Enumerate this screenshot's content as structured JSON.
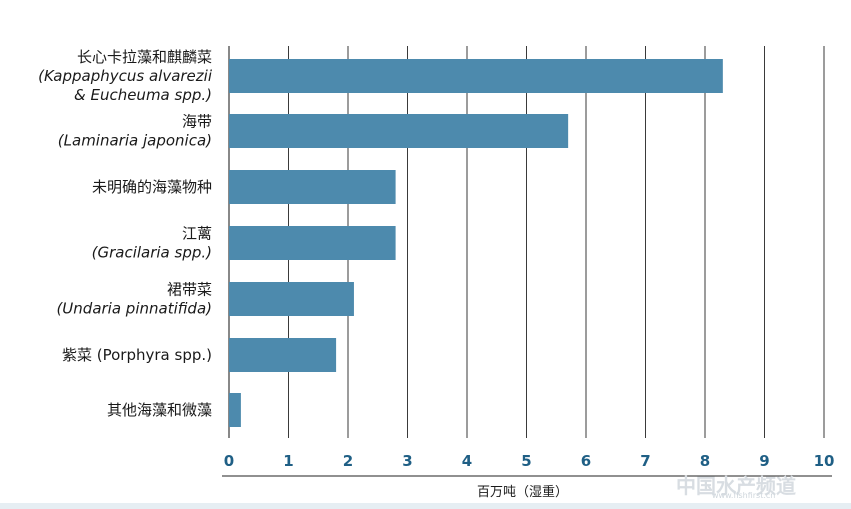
{
  "chart_data": {
    "type": "bar",
    "orientation": "horizontal",
    "categories": [
      {
        "lines": [
          {
            "text": "长心卡拉藻和麒麟菜",
            "italic": false
          },
          {
            "text": "(Kappaphycus alvarezii",
            "italic": true
          },
          {
            "text": "& Eucheuma spp.)",
            "italic": true
          }
        ]
      },
      {
        "lines": [
          {
            "text": "海带",
            "italic": false
          },
          {
            "text": "(Laminaria japonica)",
            "italic": true
          }
        ]
      },
      {
        "lines": [
          {
            "text": "未明确的海藻物种",
            "italic": false
          }
        ]
      },
      {
        "lines": [
          {
            "text": "江蓠",
            "italic": false
          },
          {
            "text": "(Gracilaria spp.)",
            "italic": true
          }
        ]
      },
      {
        "lines": [
          {
            "text": "裙带菜",
            "italic": false
          },
          {
            "text": "(Undaria pinnatifida)",
            "italic": true
          }
        ]
      },
      {
        "lines": [
          {
            "text": "紫菜 (Porphyra spp.)",
            "italic": false
          }
        ]
      },
      {
        "lines": [
          {
            "text": "其他海藻和微藻",
            "italic": false
          }
        ]
      }
    ],
    "values": [
      8.3,
      5.7,
      2.8,
      2.8,
      2.1,
      1.8,
      0.2
    ],
    "xlim": [
      0,
      10
    ],
    "xticks": [
      "0",
      "1",
      "2",
      "3",
      "4",
      "5",
      "6",
      "7",
      "8",
      "9",
      "10"
    ],
    "xlabel": "百万吨（湿重）",
    "grid": "vertical",
    "colors": {
      "bar": "#4d8aad",
      "tick_label": "#1f5f85",
      "grid": "#3a3a3a",
      "axis": "#222222"
    }
  },
  "watermark": {
    "text": "中国水产频道",
    "subtext": "www.fishfirst.cn"
  }
}
